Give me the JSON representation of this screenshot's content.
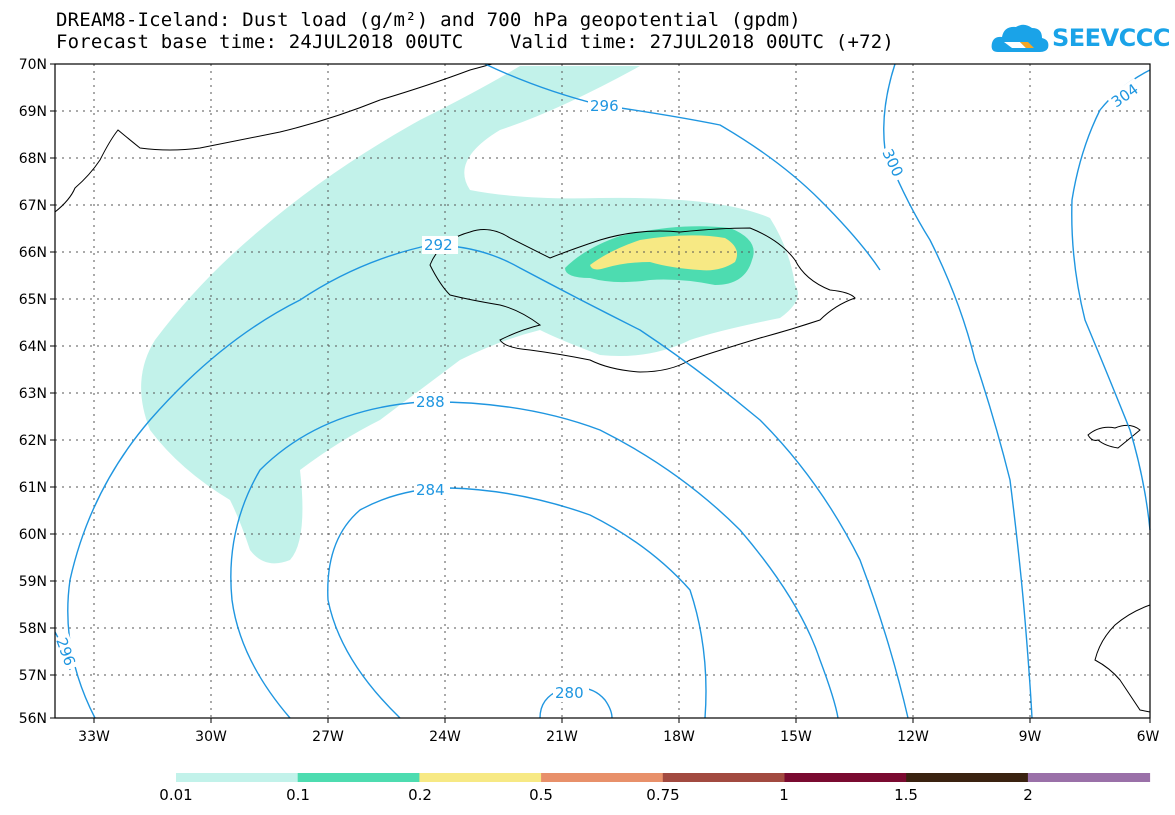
{
  "title": {
    "line1": "DREAM8-Iceland: Dust load (g/m²) and 700 hPa geopotential (gpdm)",
    "line2": "Forecast base time: 24JUL2018 00UTC    Valid time: 27JUL2018 00UTC (+72)"
  },
  "logo": {
    "text": "SEEVCCC",
    "icon": "cloud-icon",
    "color": "#1aa3e8"
  },
  "map": {
    "lat_labels": [
      "70N",
      "69N",
      "68N",
      "67N",
      "66N",
      "65N",
      "64N",
      "63N",
      "62N",
      "61N",
      "60N",
      "59N",
      "58N",
      "57N",
      "56N"
    ],
    "lon_labels": [
      "33W",
      "30W",
      "27W",
      "24W",
      "21W",
      "18W",
      "15W",
      "12W",
      "9W",
      "6W"
    ],
    "contour_labels": [
      "296",
      "300",
      "304",
      "292",
      "288",
      "284",
      "280",
      "296"
    ],
    "contour_color": "#1f96e0",
    "coast_color": "#000000"
  },
  "legend": {
    "colors": [
      "#c2f2ea",
      "#4ddcb0",
      "#f7e984",
      "#e8906a",
      "#a24a40",
      "#7a0a30",
      "#3a2210",
      "#9a70a8"
    ],
    "labels": [
      "0.01",
      "0.1",
      "0.2",
      "0.5",
      "0.75",
      "1",
      "1.5",
      "2"
    ]
  }
}
